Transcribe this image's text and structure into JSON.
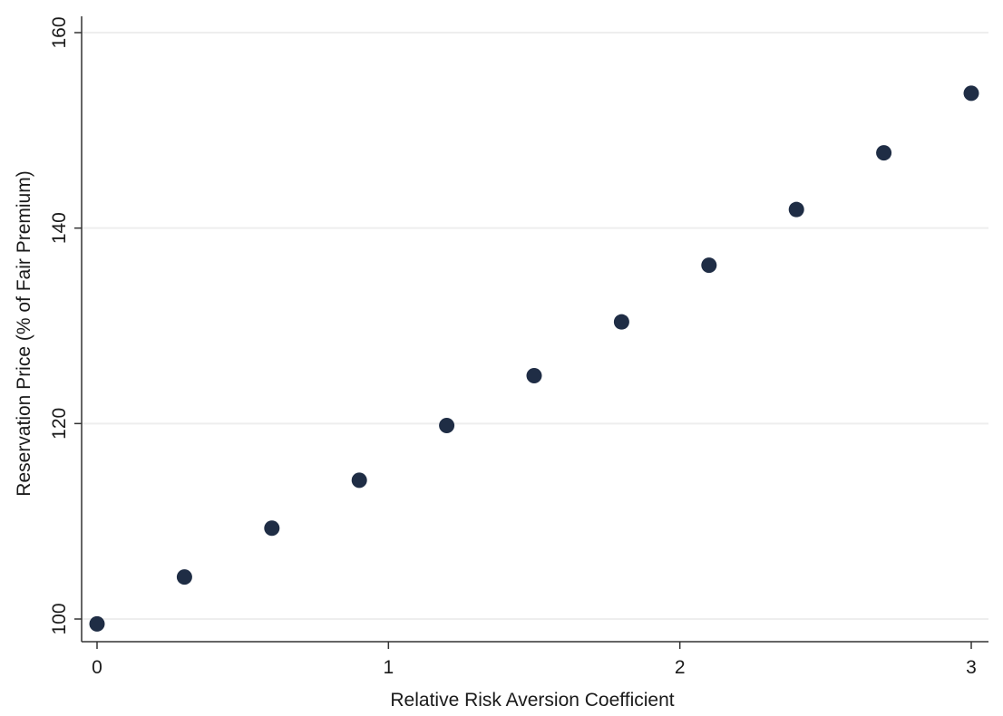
{
  "chart_data": {
    "type": "scatter",
    "title": "",
    "xlabel": "Relative Risk Aversion Coefficient",
    "ylabel": "Reservation Price (% of Fair Premium)",
    "xlim": [
      0,
      3
    ],
    "ylim": [
      100,
      160
    ],
    "xticks": [
      0,
      1,
      2,
      3
    ],
    "yticks": [
      100,
      120,
      140,
      160
    ],
    "grid": true,
    "legend": "none",
    "series": [
      {
        "x": [
          0,
          0.3,
          0.6,
          0.9,
          1.2,
          1.5,
          1.8,
          2.1,
          2.4,
          2.7,
          3.0
        ],
        "y": [
          99.5,
          104.3,
          109.3,
          114.2,
          119.8,
          124.9,
          130.4,
          136.2,
          141.9,
          147.7,
          153.8
        ],
        "color": "#1f2d45"
      }
    ]
  }
}
